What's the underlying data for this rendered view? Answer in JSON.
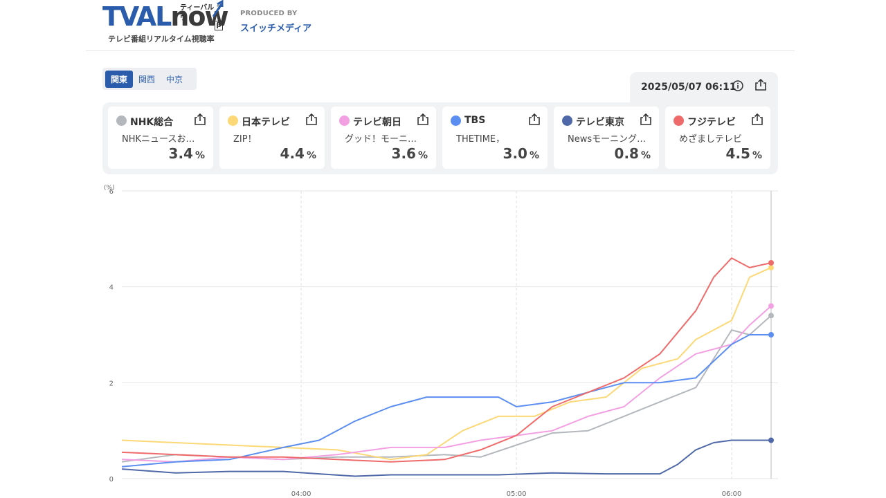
{
  "brand": {
    "logo_word_a": "TVAL",
    "logo_word_b": "now",
    "logo_kana": "ティーバル ナウ",
    "logo_beta": "β",
    "tagline": "テレビ番組リアルタイム視聴率",
    "produced_by_label": "PRODUCED BY",
    "producer": "スイッチメディア",
    "brand_color": "#2b5cab"
  },
  "regions": [
    {
      "label": "関東",
      "active": true
    },
    {
      "label": "関西",
      "active": false
    },
    {
      "label": "中京",
      "active": false
    }
  ],
  "timestamp": "2025/05/07 06:11",
  "icons": [
    "info-icon",
    "share-icon"
  ],
  "channels": [
    {
      "name": "NHK総合",
      "color": "#b4b8bd",
      "program": "NHKニュースお…",
      "rating": "3.4",
      "unit": "%"
    },
    {
      "name": "日本テレビ",
      "color": "#fcd876",
      "program": "ZIP！",
      "rating": "4.4",
      "unit": "%"
    },
    {
      "name": "テレビ朝日",
      "color": "#f3a0e3",
      "program": "グッド！モーニ…",
      "rating": "3.6",
      "unit": "%"
    },
    {
      "name": "TBS",
      "color": "#5b8ef0",
      "program": "THETIME，",
      "rating": "3.0",
      "unit": "%"
    },
    {
      "name": "テレビ東京",
      "color": "#4f68a8",
      "program": "Newsモーニング…",
      "rating": "0.8",
      "unit": "%"
    },
    {
      "name": "フジテレビ",
      "color": "#ef6b6b",
      "program": "めざましテレビ",
      "rating": "4.5",
      "unit": "%"
    }
  ],
  "chart_data": {
    "type": "line",
    "ylabel": "(%)",
    "ylim": [
      0,
      6
    ],
    "yticks": [
      "0",
      "2",
      "4",
      "6"
    ],
    "xticks": [
      "04:00",
      "05:00",
      "06:00"
    ],
    "grid": true,
    "series": [
      {
        "name": "NHK総合",
        "color": "#b4b8bd",
        "points": [
          [
            "03:10",
            0.35
          ],
          [
            "03:25",
            0.5
          ],
          [
            "03:40",
            0.45
          ],
          [
            "03:55",
            0.4
          ],
          [
            "04:10",
            0.45
          ],
          [
            "04:25",
            0.45
          ],
          [
            "04:40",
            0.5
          ],
          [
            "04:50",
            0.45
          ],
          [
            "05:00",
            0.7
          ],
          [
            "05:10",
            0.95
          ],
          [
            "05:20",
            1.0
          ],
          [
            "05:30",
            1.3
          ],
          [
            "05:40",
            1.6
          ],
          [
            "05:50",
            1.9
          ],
          [
            "05:55",
            2.5
          ],
          [
            "06:00",
            3.1
          ],
          [
            "06:05",
            3.0
          ],
          [
            "06:11",
            3.4
          ]
        ]
      },
      {
        "name": "日本テレビ",
        "color": "#fcd876",
        "points": [
          [
            "03:10",
            0.8
          ],
          [
            "03:25",
            0.75
          ],
          [
            "03:40",
            0.7
          ],
          [
            "03:55",
            0.65
          ],
          [
            "04:10",
            0.6
          ],
          [
            "04:25",
            0.4
          ],
          [
            "04:35",
            0.5
          ],
          [
            "04:45",
            1.0
          ],
          [
            "04:55",
            1.3
          ],
          [
            "05:05",
            1.3
          ],
          [
            "05:15",
            1.6
          ],
          [
            "05:25",
            1.7
          ],
          [
            "05:35",
            2.3
          ],
          [
            "05:45",
            2.5
          ],
          [
            "05:50",
            2.9
          ],
          [
            "06:00",
            3.3
          ],
          [
            "06:05",
            4.2
          ],
          [
            "06:11",
            4.4
          ]
        ]
      },
      {
        "name": "テレビ朝日",
        "color": "#f3a0e3",
        "points": [
          [
            "03:10",
            0.4
          ],
          [
            "03:25",
            0.35
          ],
          [
            "03:40",
            0.45
          ],
          [
            "03:55",
            0.4
          ],
          [
            "04:10",
            0.5
          ],
          [
            "04:25",
            0.65
          ],
          [
            "04:40",
            0.65
          ],
          [
            "04:50",
            0.8
          ],
          [
            "05:00",
            0.9
          ],
          [
            "05:10",
            1.0
          ],
          [
            "05:20",
            1.3
          ],
          [
            "05:30",
            1.5
          ],
          [
            "05:40",
            2.1
          ],
          [
            "05:50",
            2.6
          ],
          [
            "06:00",
            2.8
          ],
          [
            "06:05",
            3.2
          ],
          [
            "06:11",
            3.6
          ]
        ]
      },
      {
        "name": "TBS",
        "color": "#5b8ef0",
        "points": [
          [
            "03:10",
            0.25
          ],
          [
            "03:25",
            0.35
          ],
          [
            "03:40",
            0.4
          ],
          [
            "03:55",
            0.65
          ],
          [
            "04:05",
            0.8
          ],
          [
            "04:15",
            1.2
          ],
          [
            "04:25",
            1.5
          ],
          [
            "04:35",
            1.7
          ],
          [
            "04:45",
            1.7
          ],
          [
            "04:55",
            1.7
          ],
          [
            "05:00",
            1.5
          ],
          [
            "05:10",
            1.6
          ],
          [
            "05:20",
            1.8
          ],
          [
            "05:30",
            2.0
          ],
          [
            "05:40",
            2.0
          ],
          [
            "05:50",
            2.1
          ],
          [
            "06:00",
            2.8
          ],
          [
            "06:05",
            3.0
          ],
          [
            "06:11",
            3.0
          ]
        ]
      },
      {
        "name": "テレビ東京",
        "color": "#4f68a8",
        "points": [
          [
            "03:10",
            0.2
          ],
          [
            "03:25",
            0.12
          ],
          [
            "03:40",
            0.15
          ],
          [
            "03:55",
            0.15
          ],
          [
            "04:05",
            0.1
          ],
          [
            "04:15",
            0.05
          ],
          [
            "04:25",
            0.08
          ],
          [
            "04:40",
            0.08
          ],
          [
            "04:55",
            0.08
          ],
          [
            "05:10",
            0.12
          ],
          [
            "05:25",
            0.1
          ],
          [
            "05:40",
            0.1
          ],
          [
            "05:45",
            0.3
          ],
          [
            "05:50",
            0.6
          ],
          [
            "05:55",
            0.75
          ],
          [
            "06:00",
            0.8
          ],
          [
            "06:05",
            0.8
          ],
          [
            "06:11",
            0.8
          ]
        ]
      },
      {
        "name": "フジテレビ",
        "color": "#ef6b6b",
        "points": [
          [
            "03:10",
            0.55
          ],
          [
            "03:25",
            0.5
          ],
          [
            "03:40",
            0.45
          ],
          [
            "03:55",
            0.45
          ],
          [
            "04:10",
            0.4
          ],
          [
            "04:25",
            0.35
          ],
          [
            "04:40",
            0.4
          ],
          [
            "04:50",
            0.6
          ],
          [
            "05:00",
            0.9
          ],
          [
            "05:10",
            1.5
          ],
          [
            "05:20",
            1.8
          ],
          [
            "05:30",
            2.1
          ],
          [
            "05:40",
            2.6
          ],
          [
            "05:50",
            3.5
          ],
          [
            "05:55",
            4.2
          ],
          [
            "06:00",
            4.6
          ],
          [
            "06:05",
            4.4
          ],
          [
            "06:11",
            4.5
          ]
        ]
      }
    ]
  }
}
